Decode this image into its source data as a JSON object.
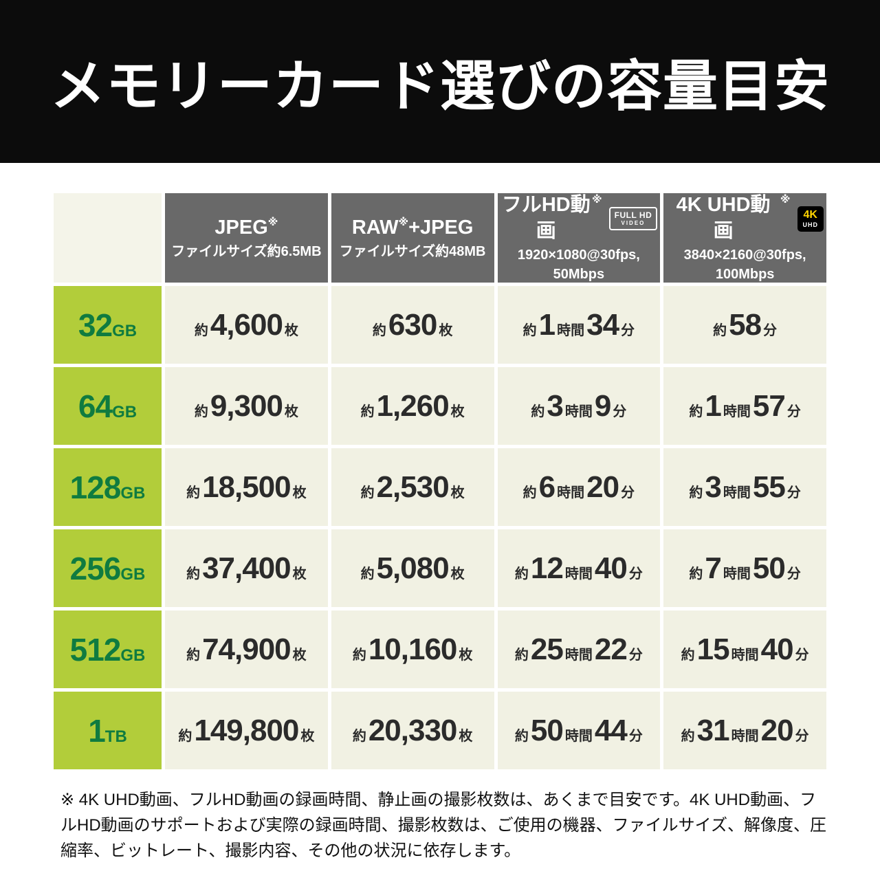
{
  "page": {
    "title": "メモリーカード選びの容量目安",
    "footnote": "※ 4K UHD動画、フルHD動画の録画時間、静止画の撮影枚数は、あくまで目安です。4K UHD動画、フルHD動画のサポートおよび実際の録画時間、撮影枚数は、ご使用の機器、ファイルサイズ、解像度、圧縮率、ビットレート、撮影内容、その他の状況に依存します。"
  },
  "colors": {
    "banner_bg": "#0c0c0c",
    "header_cell_bg": "#696969",
    "capacity_cell_bg": "#b2cd3a",
    "capacity_text": "#0f7b40",
    "data_cell_bg": "#f1f1e3",
    "value_text": "#2b2b2b",
    "badge_4k_accent": "#ffd400"
  },
  "table": {
    "columns": [
      {
        "key": "jpeg",
        "title": "JPEG",
        "sup": "※",
        "title_rest": "",
        "badge": null,
        "subtitle": [
          "ファイルサイズ約6.5MB"
        ]
      },
      {
        "key": "raw-jpeg",
        "title": "RAW",
        "sup": "※",
        "title_rest": "+JPEG",
        "badge": null,
        "subtitle": [
          "ファイルサイズ約48MB"
        ]
      },
      {
        "key": "fullhd-video",
        "title": "フルHD動画",
        "sup": "※",
        "title_rest": "",
        "badge": {
          "style": "outline",
          "lines": [
            "FULL HD",
            "VIDEO"
          ]
        },
        "subtitle": [
          "1920×1080@30fps,",
          "50Mbps"
        ]
      },
      {
        "key": "4k-uhd-video",
        "title": "4K UHD動画",
        "sup": "※",
        "title_rest": "",
        "badge": {
          "style": "solid",
          "lines": [
            "4K",
            "UHD"
          ]
        },
        "subtitle": [
          "3840×2160@30fps,",
          "100Mbps"
        ]
      }
    ],
    "rows": [
      {
        "capacity": {
          "num": "32",
          "unit": "GB"
        },
        "cells": [
          [
            {
              "s": "sm",
              "t": "約"
            },
            {
              "s": "lg",
              "t": "4,600"
            },
            {
              "s": "sm",
              "t": "枚"
            }
          ],
          [
            {
              "s": "sm",
              "t": "約"
            },
            {
              "s": "lg",
              "t": "630"
            },
            {
              "s": "sm",
              "t": "枚"
            }
          ],
          [
            {
              "s": "sm",
              "t": "約"
            },
            {
              "s": "lg",
              "t": "1"
            },
            {
              "s": "sm",
              "t": "時間"
            },
            {
              "s": "lg",
              "t": "34"
            },
            {
              "s": "sm",
              "t": "分"
            }
          ],
          [
            {
              "s": "sm",
              "t": "約"
            },
            {
              "s": "lg",
              "t": "58"
            },
            {
              "s": "sm",
              "t": "分"
            }
          ]
        ]
      },
      {
        "capacity": {
          "num": "64",
          "unit": "GB"
        },
        "cells": [
          [
            {
              "s": "sm",
              "t": "約"
            },
            {
              "s": "lg",
              "t": "9,300"
            },
            {
              "s": "sm",
              "t": "枚"
            }
          ],
          [
            {
              "s": "sm",
              "t": "約"
            },
            {
              "s": "lg",
              "t": "1,260"
            },
            {
              "s": "sm",
              "t": "枚"
            }
          ],
          [
            {
              "s": "sm",
              "t": "約"
            },
            {
              "s": "lg",
              "t": "3"
            },
            {
              "s": "sm",
              "t": "時間"
            },
            {
              "s": "lg",
              "t": "9"
            },
            {
              "s": "sm",
              "t": "分"
            }
          ],
          [
            {
              "s": "sm",
              "t": "約"
            },
            {
              "s": "lg",
              "t": "1"
            },
            {
              "s": "sm",
              "t": "時間"
            },
            {
              "s": "lg",
              "t": "57"
            },
            {
              "s": "sm",
              "t": "分"
            }
          ]
        ]
      },
      {
        "capacity": {
          "num": "128",
          "unit": "GB"
        },
        "cells": [
          [
            {
              "s": "sm",
              "t": "約"
            },
            {
              "s": "lg",
              "t": "18,500"
            },
            {
              "s": "sm",
              "t": "枚"
            }
          ],
          [
            {
              "s": "sm",
              "t": "約"
            },
            {
              "s": "lg",
              "t": "2,530"
            },
            {
              "s": "sm",
              "t": "枚"
            }
          ],
          [
            {
              "s": "sm",
              "t": "約"
            },
            {
              "s": "lg",
              "t": "6"
            },
            {
              "s": "sm",
              "t": "時間"
            },
            {
              "s": "lg",
              "t": "20"
            },
            {
              "s": "sm",
              "t": "分"
            }
          ],
          [
            {
              "s": "sm",
              "t": "約"
            },
            {
              "s": "lg",
              "t": "3"
            },
            {
              "s": "sm",
              "t": "時間"
            },
            {
              "s": "lg",
              "t": "55"
            },
            {
              "s": "sm",
              "t": "分"
            }
          ]
        ]
      },
      {
        "capacity": {
          "num": "256",
          "unit": "GB"
        },
        "cells": [
          [
            {
              "s": "sm",
              "t": "約"
            },
            {
              "s": "lg",
              "t": "37,400"
            },
            {
              "s": "sm",
              "t": "枚"
            }
          ],
          [
            {
              "s": "sm",
              "t": "約"
            },
            {
              "s": "lg",
              "t": "5,080"
            },
            {
              "s": "sm",
              "t": "枚"
            }
          ],
          [
            {
              "s": "sm",
              "t": "約"
            },
            {
              "s": "lg",
              "t": "12"
            },
            {
              "s": "sm",
              "t": "時間"
            },
            {
              "s": "lg",
              "t": "40"
            },
            {
              "s": "sm",
              "t": "分"
            }
          ],
          [
            {
              "s": "sm",
              "t": "約"
            },
            {
              "s": "lg",
              "t": "7"
            },
            {
              "s": "sm",
              "t": "時間"
            },
            {
              "s": "lg",
              "t": "50"
            },
            {
              "s": "sm",
              "t": "分"
            }
          ]
        ]
      },
      {
        "capacity": {
          "num": "512",
          "unit": "GB"
        },
        "cells": [
          [
            {
              "s": "sm",
              "t": "約"
            },
            {
              "s": "lg",
              "t": "74,900"
            },
            {
              "s": "sm",
              "t": "枚"
            }
          ],
          [
            {
              "s": "sm",
              "t": "約"
            },
            {
              "s": "lg",
              "t": "10,160"
            },
            {
              "s": "sm",
              "t": "枚"
            }
          ],
          [
            {
              "s": "sm",
              "t": "約"
            },
            {
              "s": "lg",
              "t": "25"
            },
            {
              "s": "sm",
              "t": "時間"
            },
            {
              "s": "lg",
              "t": "22"
            },
            {
              "s": "sm",
              "t": "分"
            }
          ],
          [
            {
              "s": "sm",
              "t": "約"
            },
            {
              "s": "lg",
              "t": "15"
            },
            {
              "s": "sm",
              "t": "時間"
            },
            {
              "s": "lg",
              "t": "40"
            },
            {
              "s": "sm",
              "t": "分"
            }
          ]
        ]
      },
      {
        "capacity": {
          "num": "1",
          "unit": "TB"
        },
        "cells": [
          [
            {
              "s": "sm",
              "t": "約"
            },
            {
              "s": "lg",
              "t": "149,800"
            },
            {
              "s": "sm",
              "t": "枚"
            }
          ],
          [
            {
              "s": "sm",
              "t": "約"
            },
            {
              "s": "lg",
              "t": "20,330"
            },
            {
              "s": "sm",
              "t": "枚"
            }
          ],
          [
            {
              "s": "sm",
              "t": "約"
            },
            {
              "s": "lg",
              "t": "50"
            },
            {
              "s": "sm",
              "t": "時間"
            },
            {
              "s": "lg",
              "t": "44"
            },
            {
              "s": "sm",
              "t": "分"
            }
          ],
          [
            {
              "s": "sm",
              "t": "約"
            },
            {
              "s": "lg",
              "t": "31"
            },
            {
              "s": "sm",
              "t": "時間"
            },
            {
              "s": "lg",
              "t": "20"
            },
            {
              "s": "sm",
              "t": "分"
            }
          ]
        ]
      }
    ]
  },
  "chart_data": {
    "type": "table",
    "title": "メモリーカード選びの容量目安",
    "columns": [
      "容量",
      "JPEG※ ファイルサイズ約6.5MB",
      "RAW※+JPEG ファイルサイズ約48MB",
      "フルHD動画※ 1920×1080@30fps, 50Mbps",
      "4K UHD動画※ 3840×2160@30fps, 100Mbps"
    ],
    "rows": [
      [
        "32GB",
        "約4,600枚",
        "約630枚",
        "約1時間34分",
        "約58分"
      ],
      [
        "64GB",
        "約9,300枚",
        "約1,260枚",
        "約3時間9分",
        "約1時間57分"
      ],
      [
        "128GB",
        "約18,500枚",
        "約2,530枚",
        "約6時間20分",
        "約3時間55分"
      ],
      [
        "256GB",
        "約37,400枚",
        "約5,080枚",
        "約12時間40分",
        "約7時間50分"
      ],
      [
        "512GB",
        "約74,900枚",
        "約10,160枚",
        "約25時間22分",
        "約15時間40分"
      ],
      [
        "1TB",
        "約149,800枚",
        "約20,330枚",
        "約50時間44分",
        "約31時間20分"
      ]
    ],
    "footnote": "※ 4K UHD動画、フルHD動画の録画時間、静止画の撮影枚数は、あくまで目安です。4K UHD動画、フルHD動画のサポートおよび実際の録画時間、撮影枚数は、ご使用の機器、ファイルサイズ、解像度、圧縮率、ビットレート、撮影内容、その他の状況に依存します。"
  }
}
